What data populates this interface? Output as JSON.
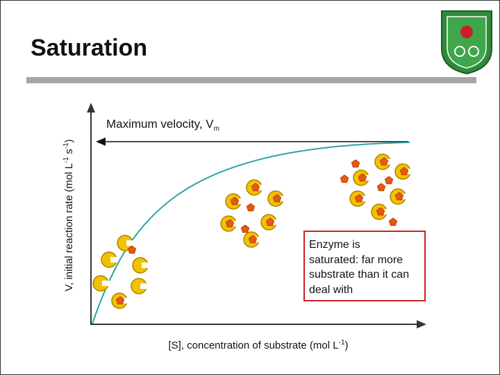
{
  "title": "Saturation",
  "y_axis_label": [
    "V, initial reaction rate (mol L",
    "-1",
    " s",
    "-1",
    ")"
  ],
  "max_velocity_label": [
    "Maximum velocity, V",
    "m"
  ],
  "x_axis_label": [
    "[S], concentration of substrate (mol L",
    "-1",
    ")"
  ],
  "callout": {
    "lines": [
      "Enzyme is",
      "saturated: far more",
      "substrate than it can",
      "deal with"
    ]
  }
}
